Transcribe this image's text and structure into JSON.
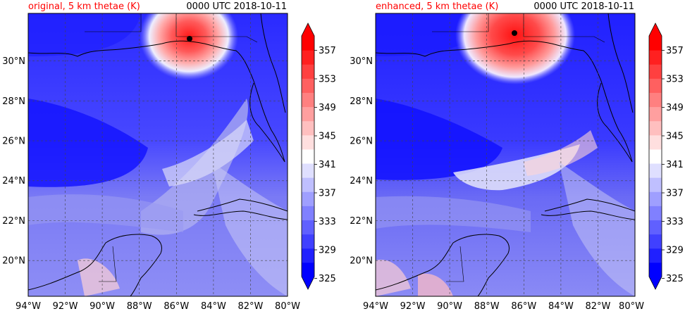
{
  "panels": [
    {
      "title": "original, 5 km thetae (K)",
      "time_label": "0000 UTC 2018-10-11"
    },
    {
      "title": "enhanced, 5 km thetae (K)",
      "time_label": "0000 UTC 2018-10-11"
    }
  ],
  "map": {
    "lon_range": [
      -94,
      -80
    ],
    "lat_range": [
      18.2,
      31.9
    ],
    "lon_ticks": [
      "94°W",
      "92°W",
      "90°W",
      "88°W",
      "86°W",
      "84°W",
      "82°W",
      "80°W"
    ],
    "lat_ticks": [
      "20°N",
      "22°N",
      "24°N",
      "26°N",
      "28°N",
      "30°N"
    ],
    "gridlines": true
  },
  "colorbar": {
    "tick_labels": [
      "325",
      "329",
      "333",
      "337",
      "341",
      "345",
      "349",
      "353",
      "357"
    ],
    "levels": 17,
    "min": 325,
    "max": 359,
    "low_color": "#0000ff",
    "mid_color": "#ffffff",
    "high_color": "#ff0000"
  },
  "colors": {
    "title_accent": "#ff0000",
    "ocean_deep": "#1a1aff",
    "field_mid": "#6e6ef5",
    "field_light": "#b8b8f5"
  }
}
